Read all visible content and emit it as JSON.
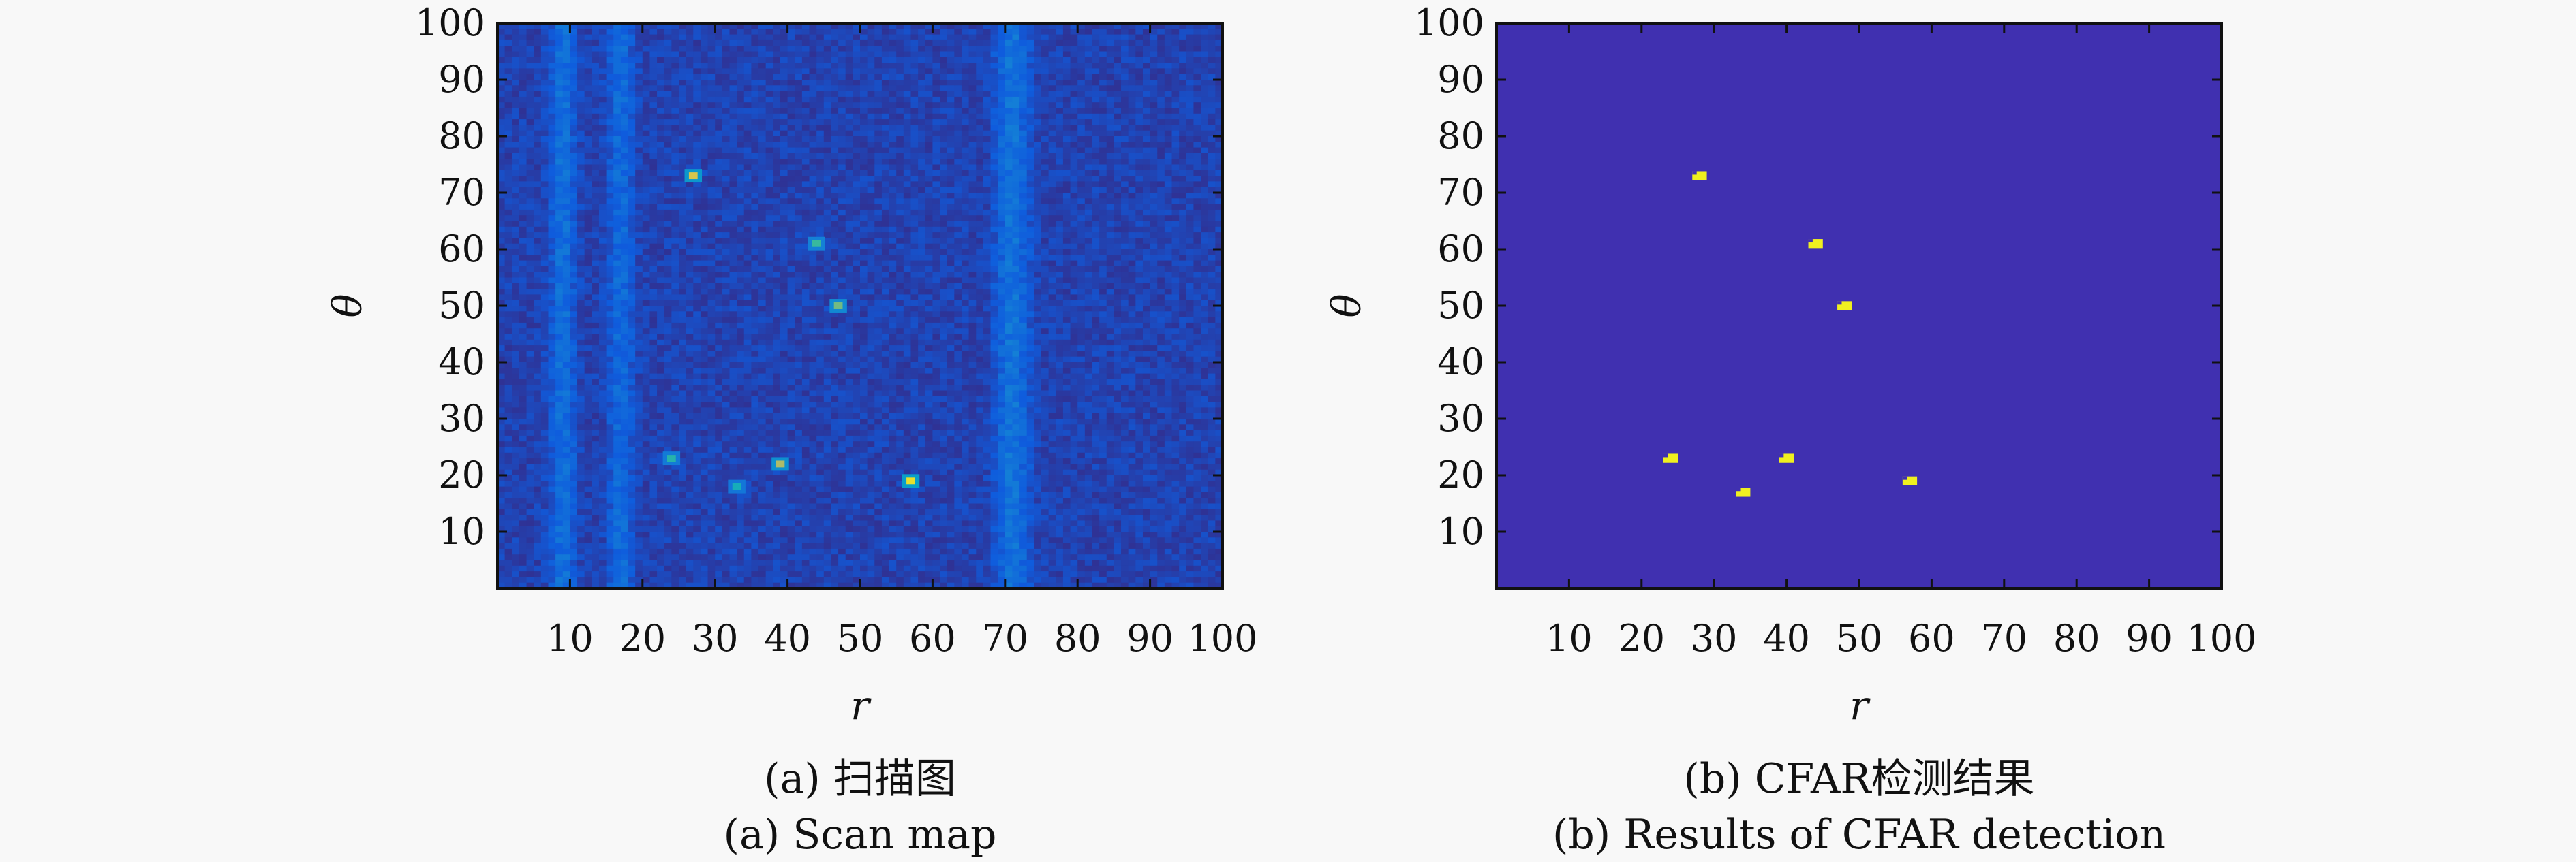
{
  "figure": {
    "panels": [
      {
        "caption_cn": "(a) 扫描图",
        "caption_en": "(a) Scan map"
      },
      {
        "caption_cn": "(b) CFAR检测结果",
        "caption_en": "(b) Results of CFAR detection"
      }
    ]
  },
  "chart_data": [
    {
      "type": "heatmap",
      "title": "",
      "xlabel": "r",
      "ylabel": "θ",
      "xlim": [
        0,
        100
      ],
      "ylim": [
        0,
        100
      ],
      "xticks": [
        10,
        20,
        30,
        40,
        50,
        60,
        70,
        80,
        90,
        100
      ],
      "yticks": [
        10,
        20,
        30,
        40,
        50,
        60,
        70,
        80,
        90,
        100
      ],
      "colormap": "parula",
      "background_color": "#3a44c4",
      "stripes": [
        {
          "r_center": 9,
          "r_width": 3,
          "intensity": 0.28
        },
        {
          "r_center": 17,
          "r_width": 3,
          "intensity": 0.25
        },
        {
          "r_center": 71,
          "r_width": 4,
          "intensity": 0.3
        }
      ],
      "targets": [
        {
          "r": 27,
          "theta": 73,
          "intensity": 0.9
        },
        {
          "r": 44,
          "theta": 61,
          "intensity": 0.75
        },
        {
          "r": 47,
          "theta": 50,
          "intensity": 0.8
        },
        {
          "r": 24,
          "theta": 23,
          "intensity": 0.7
        },
        {
          "r": 33,
          "theta": 18,
          "intensity": 0.65
        },
        {
          "r": 39,
          "theta": 22,
          "intensity": 0.85
        },
        {
          "r": 57,
          "theta": 19,
          "intensity": 0.95
        }
      ]
    },
    {
      "type": "heatmap",
      "title": "",
      "xlabel": "r",
      "ylabel": "θ",
      "xlim": [
        0,
        100
      ],
      "ylim": [
        0,
        100
      ],
      "xticks": [
        10,
        20,
        30,
        40,
        50,
        60,
        70,
        80,
        90,
        100
      ],
      "yticks": [
        10,
        20,
        30,
        40,
        50,
        60,
        70,
        80,
        90,
        100
      ],
      "background_color": "#4030b0",
      "detection_color": "#f0f020",
      "detections": [
        {
          "r": 28,
          "theta": 73
        },
        {
          "r": 44,
          "theta": 61
        },
        {
          "r": 48,
          "theta": 50
        },
        {
          "r": 24,
          "theta": 23
        },
        {
          "r": 34,
          "theta": 17
        },
        {
          "r": 40,
          "theta": 23
        },
        {
          "r": 57,
          "theta": 19
        }
      ]
    }
  ]
}
